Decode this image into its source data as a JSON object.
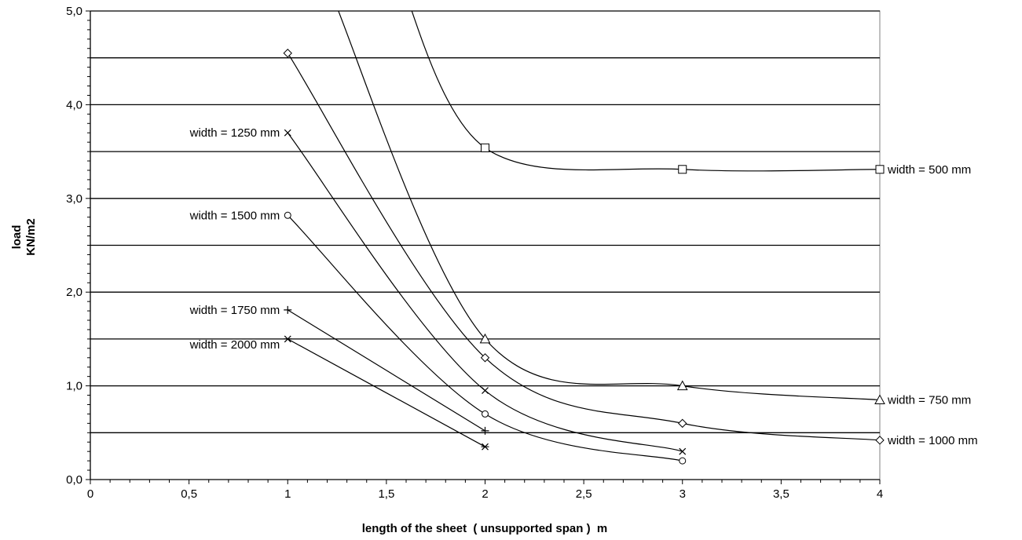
{
  "chart_data": {
    "type": "line",
    "title": "",
    "xlabel": "length of the sheet  ( unsupported span )  m",
    "ylabel_lines": [
      "load",
      "KN/m2"
    ],
    "xlim": [
      0,
      4
    ],
    "ylim": [
      0,
      5
    ],
    "x_ticks": [
      "0",
      "0,5",
      "1",
      "1,5",
      "2",
      "2,5",
      "3",
      "3,5",
      "4"
    ],
    "y_ticks": [
      "0,0",
      "1,0",
      "2,0",
      "3,0",
      "4,0",
      "5,0"
    ],
    "gridlines_y": [
      0.5,
      1.0,
      1.5,
      2.0,
      2.5,
      3.0,
      3.5,
      4.0,
      4.5,
      5.0
    ],
    "grid": "horizontal",
    "legend": "none (series labelled inline)",
    "series": [
      {
        "name": "width = 500 mm",
        "marker": "square",
        "label_side": "right",
        "x": [
          2,
          3,
          4
        ],
        "y": [
          3.54,
          3.31,
          3.31
        ]
      },
      {
        "name": "width = 750 mm",
        "marker": "triangle",
        "label_side": "right",
        "x": [
          2,
          3,
          4
        ],
        "y": [
          1.5,
          1.0,
          0.85
        ]
      },
      {
        "name": "width = 1000 mm",
        "marker": "diamond",
        "label_side": "right",
        "x": [
          1,
          2,
          3,
          4
        ],
        "y": [
          4.55,
          1.3,
          0.6,
          0.42
        ]
      },
      {
        "name": "width = 1250 mm",
        "marker": "x",
        "label_side": "left",
        "x": [
          1,
          2,
          3
        ],
        "y": [
          3.7,
          0.95,
          0.3
        ]
      },
      {
        "name": "width = 1500 mm",
        "marker": "circle",
        "label_side": "left",
        "x": [
          1,
          2,
          3
        ],
        "y": [
          2.82,
          0.7,
          0.2
        ]
      },
      {
        "name": "width = 1750 mm",
        "marker": "plus",
        "label_side": "left",
        "x": [
          1,
          2
        ],
        "y": [
          1.81,
          0.52
        ]
      },
      {
        "name": "width = 2000 mm",
        "marker": "star",
        "label_side": "left",
        "x": [
          1,
          2
        ],
        "y": [
          1.5,
          0.35
        ]
      }
    ]
  }
}
